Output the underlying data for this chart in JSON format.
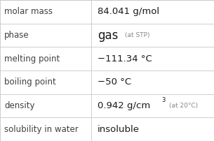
{
  "rows": [
    {
      "label": "molar mass",
      "value_main": "84.041 g/mol",
      "superscript": null,
      "annotation": null
    },
    {
      "label": "phase",
      "value_main": "gas",
      "superscript": null,
      "annotation": "(at STP)"
    },
    {
      "label": "melting point",
      "value_main": "−111.34 °C",
      "superscript": null,
      "annotation": null
    },
    {
      "label": "boiling point",
      "value_main": "−50 °C",
      "superscript": null,
      "annotation": null
    },
    {
      "label": "density",
      "value_main": "0.942 g/cm",
      "superscript": "3",
      "annotation": "(at 20°C)"
    },
    {
      "label": "solubility in water",
      "value_main": "insoluble",
      "superscript": null,
      "annotation": null
    }
  ],
  "col_split": 0.425,
  "bg_color": "#ffffff",
  "label_color": "#404040",
  "value_color": "#1a1a1a",
  "annotation_color": "#888888",
  "grid_color": "#c8c8c8",
  "label_fontsize": 8.5,
  "value_fontsize": 9.5,
  "phase_fontsize": 12.0,
  "annotation_fontsize": 6.5,
  "superscript_fontsize": 6.0,
  "figwidth": 3.05,
  "figheight": 2.02,
  "dpi": 100
}
